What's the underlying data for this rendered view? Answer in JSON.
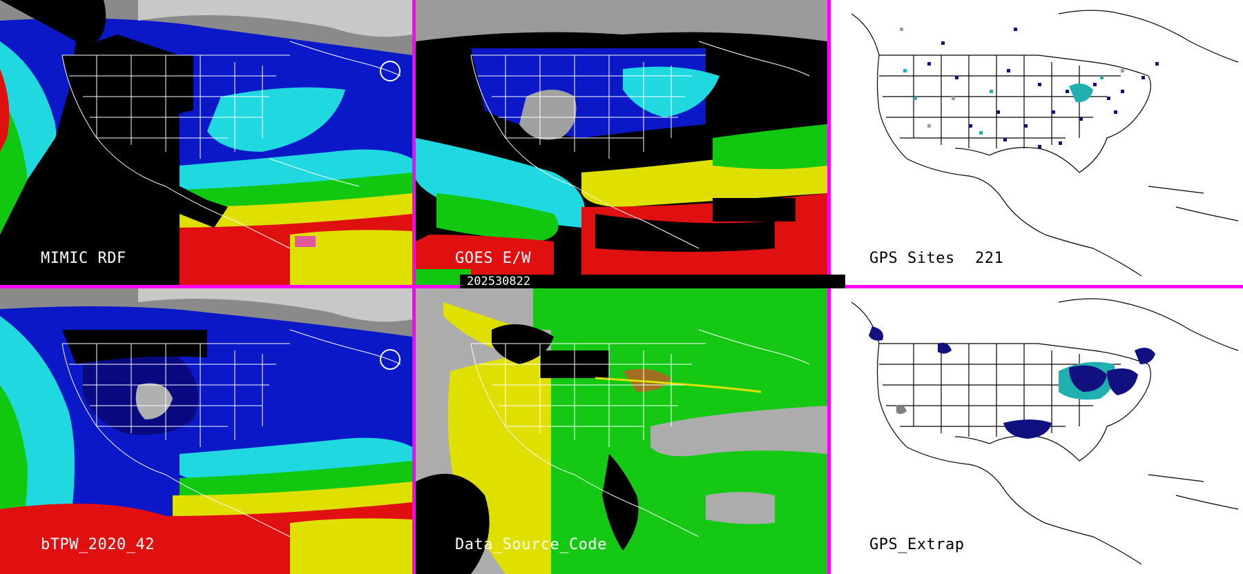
{
  "colors": {
    "separator": "#ff00ff",
    "ocean_dry": "#0a0ad0",
    "moist_cyan": "#20d8e0",
    "moist_green": "#10c810",
    "moist_yellow": "#e0e000",
    "moist_red": "#e01010",
    "cloud_gray": "#9a9a9a",
    "source_gray": "#acacac",
    "source_yellow": "#e0e000",
    "source_green": "#14c814"
  },
  "panels": {
    "mimic_rdf": {
      "label": "MIMIC RDF"
    },
    "goes_ew": {
      "label": "GOES E/W"
    },
    "gps_sites": {
      "label": "GPS Sites",
      "count": "221"
    },
    "btpw": {
      "label": "bTPW_2020_42"
    },
    "data_source": {
      "label": "Data_Source_Code"
    },
    "gps_extrap": {
      "label": "GPS_Extrap"
    }
  },
  "timestamp": "202530822"
}
